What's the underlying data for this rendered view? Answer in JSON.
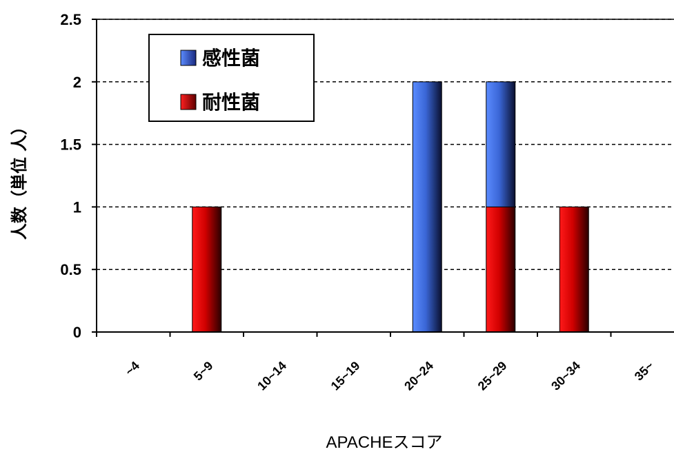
{
  "chart_data": {
    "type": "bar",
    "stacked": true,
    "categories": [
      "~4",
      "5~9",
      "10~14",
      "15~19",
      "20~24",
      "25~29",
      "30~34",
      "35~"
    ],
    "series": [
      {
        "name": "耐性菌",
        "color": "#e00000",
        "values": [
          0,
          1,
          0,
          0,
          0,
          1,
          1,
          0
        ]
      },
      {
        "name": "感性菌",
        "color": "#3a6ee0",
        "values": [
          0,
          0,
          0,
          0,
          2,
          1,
          0,
          0
        ]
      }
    ],
    "xlabel": "APACHEスコア",
    "ylabel": "人数（単位 人）",
    "ylim": [
      0,
      2.5
    ],
    "yticks": [
      "0",
      "0.5",
      "1",
      "1.5",
      "2",
      "2.5"
    ],
    "grid": "dashed horizontal",
    "legend": {
      "position": "top-left",
      "order": [
        "感性菌",
        "耐性菌"
      ]
    }
  }
}
